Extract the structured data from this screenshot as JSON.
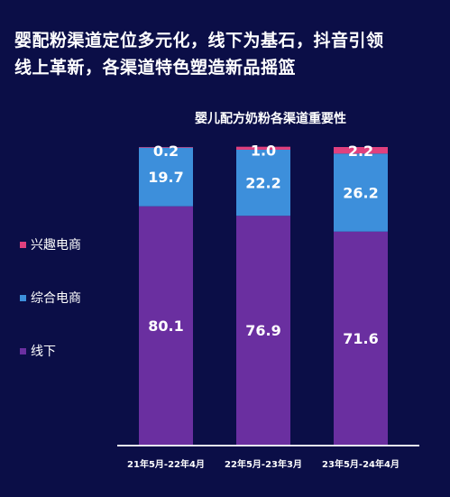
{
  "headline": {
    "line1": "婴配粉渠道定位多元化，线下为基石，抖音引领",
    "line2": "线上革新，各渠道特色塑造新品摇篮"
  },
  "chart_data": {
    "type": "bar",
    "stacked": true,
    "title": "婴儿配方奶粉各渠道重要性",
    "categories": [
      "21年5月-22年4月",
      "22年5月-23年3月",
      "23年5月-24年4月"
    ],
    "series": [
      {
        "name": "线下",
        "values": [
          80.1,
          76.9,
          71.6
        ],
        "color": "#6a2fa0"
      },
      {
        "name": "综合电商",
        "values": [
          19.7,
          22.2,
          26.2
        ],
        "color": "#3d8fdb"
      },
      {
        "name": "兴趣电商",
        "values": [
          0.2,
          1.0,
          2.2
        ],
        "color": "#e0407e"
      }
    ],
    "ylim": [
      0,
      100
    ],
    "grid": false,
    "legend_position": "left"
  },
  "legend": {
    "items": [
      {
        "label": "兴趣电商",
        "color": "#e0407e"
      },
      {
        "label": "综合电商",
        "color": "#3d8fdb"
      },
      {
        "label": "线下",
        "color": "#6a2fa0"
      }
    ]
  }
}
